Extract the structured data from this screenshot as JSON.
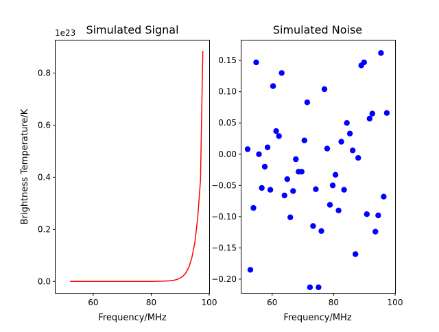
{
  "chart_data": [
    {
      "type": "line",
      "title": "Simulated Signal",
      "xlabel": "Frequency/MHz",
      "ylabel": "Brightness Temperature/K",
      "y_offset_text": "1e23",
      "y_scale_factor": 1e+23,
      "xlim": [
        47,
        100
      ],
      "ylim": [
        -0.044,
        0.925
      ],
      "xticks": [
        60,
        80,
        100
      ],
      "xtick_labels": [
        "60",
        "80",
        "100"
      ],
      "yticks": [
        0.0,
        0.2,
        0.4,
        0.6,
        0.8
      ],
      "ytick_labels": [
        "0.0",
        "0.2",
        "0.4",
        "0.6",
        "0.8"
      ],
      "series": [
        {
          "color": "#ff0000",
          "x": [
            52,
            60,
            70,
            80,
            84,
            86,
            88,
            89,
            90,
            91,
            92,
            93,
            94,
            95,
            96,
            97,
            97.8
          ],
          "y": [
            0,
            0,
            0,
            0,
            0.001,
            0.002,
            0.005,
            0.008,
            0.013,
            0.021,
            0.034,
            0.055,
            0.09,
            0.147,
            0.24,
            0.39,
            0.885
          ]
        }
      ],
      "grid": false
    },
    {
      "type": "scatter",
      "title": "Simulated Noise",
      "xlabel": "Frequency/MHz",
      "ylabel": "",
      "xlim": [
        50,
        100
      ],
      "ylim": [
        -0.222,
        0.182
      ],
      "xticks": [
        60,
        80,
        100
      ],
      "xtick_labels": [
        "60",
        "80",
        "100"
      ],
      "yticks": [
        0.15,
        0.1,
        0.05,
        0.0,
        -0.05,
        -0.1,
        -0.15,
        -0.2
      ],
      "ytick_labels": [
        "0.15",
        "0.10",
        "0.05",
        "0.00",
        "−0.05",
        "−0.10",
        "−0.15",
        "−0.20"
      ],
      "series": [
        {
          "color": "#0000ff",
          "x": [
            52.0,
            52.9,
            53.9,
            54.8,
            55.7,
            56.6,
            57.6,
            58.5,
            59.4,
            60.3,
            61.3,
            62.2,
            63.1,
            64.0,
            64.9,
            65.9,
            66.8,
            67.7,
            68.6,
            69.6,
            70.5,
            71.4,
            72.3,
            73.3,
            74.2,
            75.1,
            76.0,
            77.0,
            77.9,
            78.8,
            79.7,
            80.6,
            81.6,
            82.5,
            83.4,
            84.3,
            85.3,
            86.2,
            87.1,
            88.0,
            89.0,
            89.9,
            90.8,
            91.7,
            92.6,
            93.6,
            94.5,
            95.4,
            96.3,
            97.3
          ],
          "y": [
            0.008,
            -0.185,
            -0.086,
            0.147,
            0.0,
            -0.054,
            -0.02,
            0.011,
            -0.057,
            0.109,
            0.037,
            0.029,
            0.13,
            -0.066,
            -0.04,
            -0.101,
            -0.059,
            -0.008,
            -0.028,
            -0.028,
            0.022,
            0.083,
            -0.213,
            -0.115,
            -0.056,
            -0.213,
            -0.123,
            0.104,
            0.009,
            -0.081,
            -0.05,
            -0.033,
            -0.09,
            0.02,
            -0.057,
            0.05,
            0.033,
            0.006,
            -0.16,
            -0.006,
            0.142,
            0.147,
            -0.096,
            0.057,
            0.065,
            -0.124,
            -0.098,
            0.162,
            -0.068,
            0.066
          ]
        }
      ],
      "grid": false
    }
  ]
}
